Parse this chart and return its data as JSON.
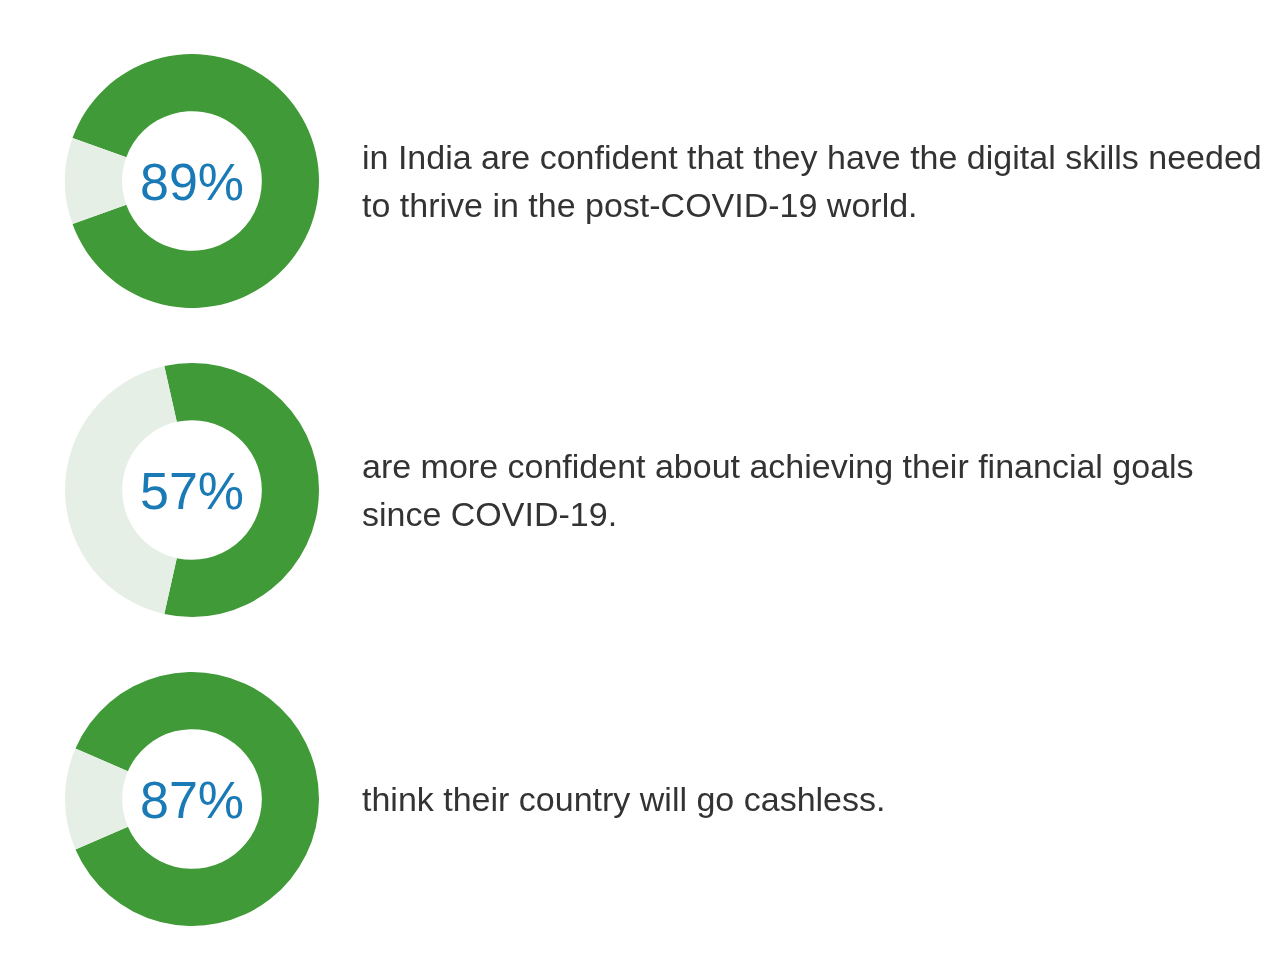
{
  "chart_data": [
    {
      "type": "donut",
      "categories": [
        null,
        null
      ],
      "values": [
        89,
        11
      ],
      "colors": [
        "#3f9a37",
        "#e6efe5"
      ],
      "value_labels": [
        "89%",
        null
      ],
      "annotations": [
        "in India are confident that they have the digital skills needed to thrive in the post-COVID-19 world."
      ]
    },
    {
      "type": "donut",
      "categories": [
        null,
        null
      ],
      "values": [
        57,
        43
      ],
      "colors": [
        "#3f9a37",
        "#e6efe5"
      ],
      "value_labels": [
        "57%",
        null
      ],
      "annotations": [
        "are more confident about achieving their financial goals since COVID-19."
      ]
    },
    {
      "type": "donut",
      "categories": [
        null,
        null
      ],
      "values": [
        87,
        13
      ],
      "colors": [
        "#3f9a37",
        "#e6efe5"
      ],
      "value_labels": [
        "87%",
        null
      ],
      "annotations": [
        "think their country will go cashless."
      ]
    }
  ]
}
